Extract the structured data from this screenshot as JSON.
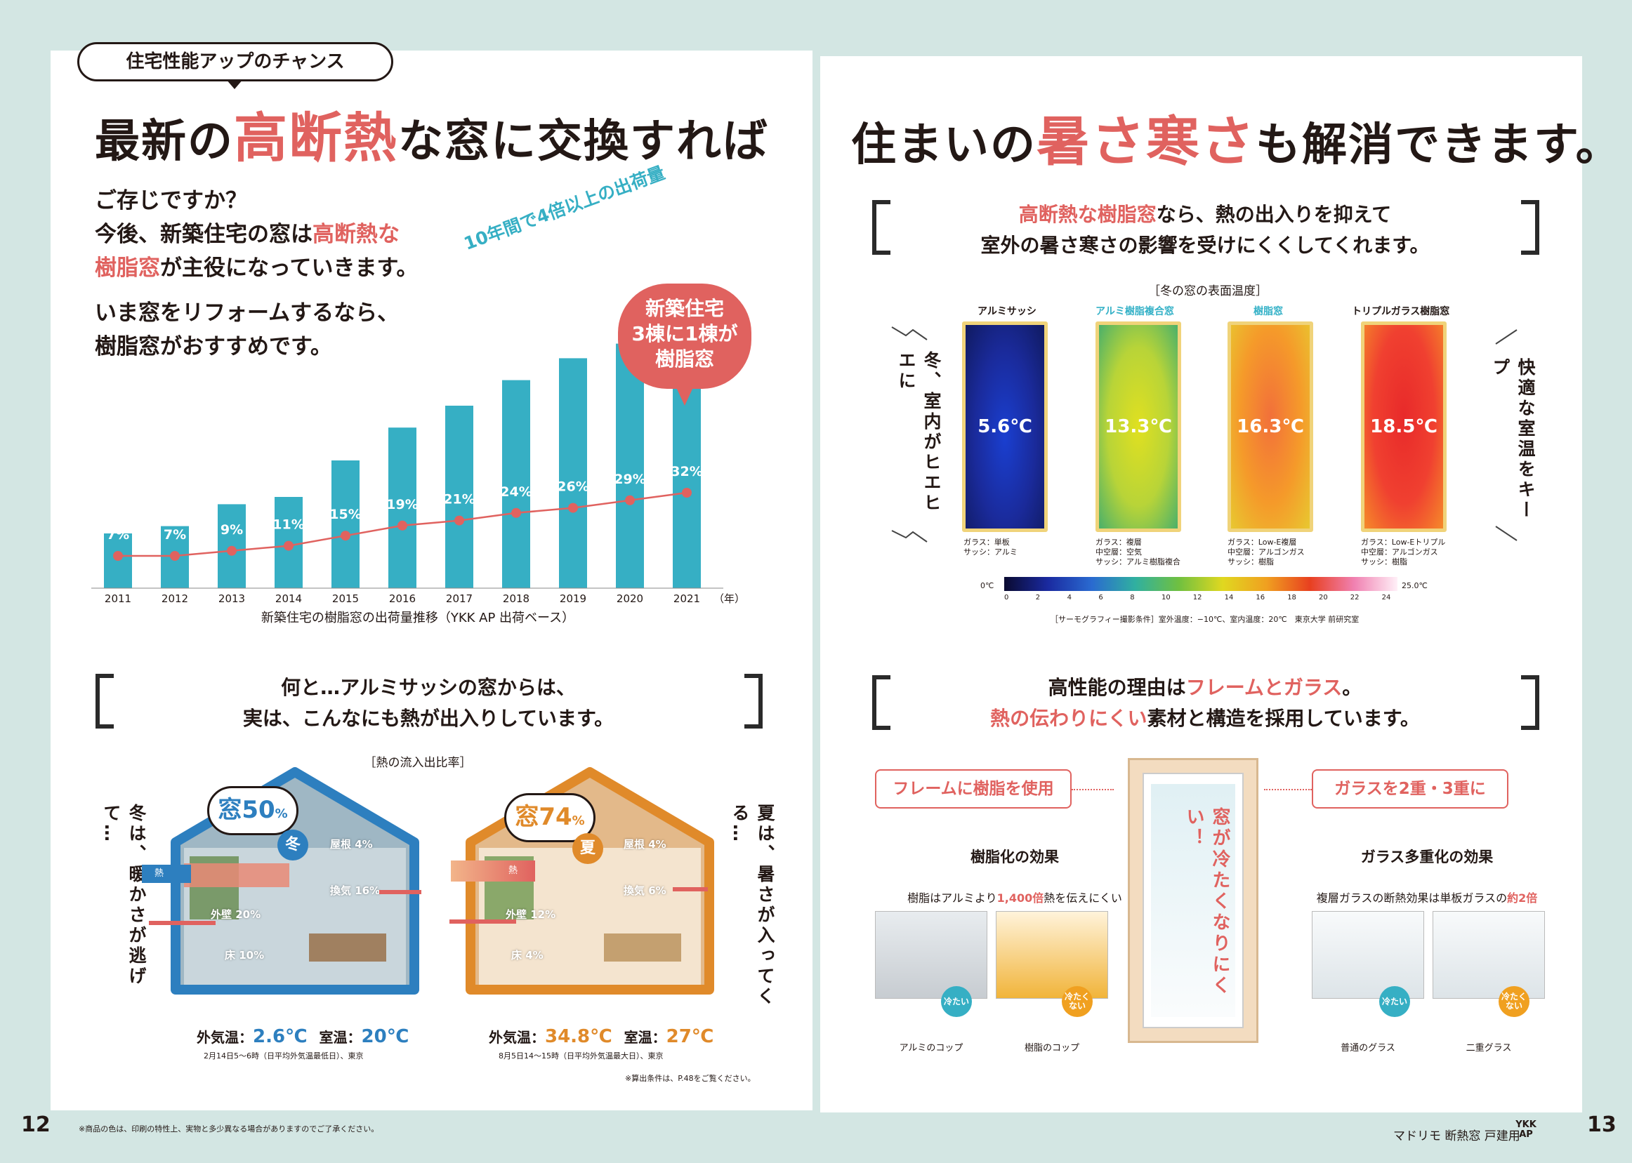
{
  "left": {
    "badge": "住宅性能アップのチャンス",
    "title": {
      "p1": "最新の",
      "p2": "高断熱",
      "p3": "な窓に交換すれば"
    },
    "intro": {
      "l1": "ご存じですか？",
      "l2a": "今後、新築住宅の窓は",
      "l2b": "高断熱な",
      "l3a": "樹脂窓",
      "l3b": "が主役になっていきます。",
      "l4": "いま窓をリフォームするなら、",
      "l5": "樹脂窓がおすすめです。"
    },
    "growth_note": "10年間で4倍以上の出荷量",
    "bubble": {
      "l1": "新築住宅",
      "l2": "3棟に1棟が",
      "l3": "樹脂窓"
    },
    "year_unit": "（年）",
    "chart_caption": "新築住宅の樹脂窓の出荷量推移（YKK AP 出荷ベース）",
    "flow_heading": {
      "l1": "何と…アルミサッシの窓からは、",
      "l2": "実は、こんなにも熱が出入りしています。"
    },
    "flow_sub": "［熱の流入出比率］",
    "winter": {
      "side": "冬は、暖かさが逃げて…",
      "window_label": "窓",
      "window_value": "50",
      "unit": "%",
      "season": "冬",
      "roof": "屋根 4%",
      "vent": "換気 16%",
      "wall": "外壁 20%",
      "floor": "床 10%",
      "heat": "熱",
      "temp_label_out": "外気温：",
      "temp_out": "2.6℃",
      "temp_label_in": "室温：",
      "temp_in": "20℃",
      "note": "2月14日5～6時（日平均外気温最低日）、東京"
    },
    "summer": {
      "side": "夏は、暑さが入ってくる…",
      "window_label": "窓",
      "window_value": "74",
      "unit": "%",
      "season": "夏",
      "roof": "屋根 4%",
      "vent": "換気 6%",
      "wall": "外壁 12%",
      "floor": "床 4%",
      "heat": "熱",
      "temp_label_out": "外気温：",
      "temp_out": "34.8℃",
      "temp_label_in": "室温：",
      "temp_in": "27℃",
      "note": "8月5日14～15時（日平均外気温最大日）、東京"
    },
    "calc_note": "※算出条件は、P.48をご覧ください。",
    "page_number": "12",
    "footer_note": "※商品の色は、印刷の特性上、実物と多少異なる場合がありますのでご了承ください。"
  },
  "right": {
    "title": {
      "p1": "住まいの",
      "p2": "暑さ寒さ",
      "p3": "も解消できます。"
    },
    "thermo_heading": {
      "l1a": "高断熱な樹脂窓",
      "l1b": "なら、熱の出入りを抑えて",
      "l2": "室外の暑さ寒さの影響を受けにくくしてくれます。"
    },
    "thermo_sub": "［冬の窓の表面温度］",
    "left_side": "冬、室内がヒエヒエに",
    "right_side": "快適な室温をキープ",
    "windows": [
      {
        "name": "アルミサッシ",
        "temp": "5.6℃",
        "spec": "ガラス：単板\nサッシ：アルミ"
      },
      {
        "name": "アルミ樹脂複合窓",
        "temp": "13.3℃",
        "spec": "ガラス：複層\n中空層：空気\nサッシ：アルミ樹脂複合"
      },
      {
        "name": "樹脂窓",
        "temp": "16.3℃",
        "spec": "ガラス：Low-E複層\n中空層：アルゴンガス\nサッシ：樹脂"
      },
      {
        "name": "トリプルガラス樹脂窓",
        "temp": "18.5℃",
        "spec": "ガラス：Low-Eトリプル\n中空層：アルゴンガス\nサッシ：樹脂"
      }
    ],
    "scale_min": "0℃",
    "scale_max": "25.0℃",
    "scale_ticks": [
      "0",
      "2",
      "4",
      "6",
      "8",
      "10",
      "12",
      "14",
      "16",
      "18",
      "20",
      "22",
      "24"
    ],
    "thermo_cond": "［サーモグラフィー撮影条件］室外温度：−10℃、室内温度：20℃　東京大学 前研究室",
    "perf_heading": {
      "l1a": "高性能の理由は",
      "l1b": "フレームとガラス",
      "l1c": "。",
      "l2a": "熱の伝わりにくい",
      "l2b": "素材と構造を採用しています。"
    },
    "frame_pill": "フレームに樹脂を使用",
    "glass_pill": "ガラスを2重・3重に",
    "window_vertical": "窓が冷たくなりにくい！",
    "resin_effect": "樹脂化の効果",
    "resin_desc": {
      "a": "樹脂はアルミより",
      "b": "1,400倍",
      "c": "熱を伝えにくい"
    },
    "glass_effect": "ガラス多重化の効果",
    "glass_desc": {
      "a": "複層ガラスの断熱効果は単板ガラスの",
      "b": "約2倍"
    },
    "cups": [
      {
        "label": "アルミのコップ",
        "badge": "冷たい"
      },
      {
        "label": "樹脂のコップ",
        "badge": "冷たくない"
      },
      {
        "label": "普通のグラス",
        "badge": "冷たい"
      },
      {
        "label": "二重グラス",
        "badge": "冷たくない"
      }
    ],
    "brand": "マドリモ 断熱窓 戸建用",
    "logo": "YKK AP",
    "page_number": "13"
  },
  "chart_data": {
    "type": "bar",
    "categories": [
      "2011",
      "2012",
      "2013",
      "2014",
      "2015",
      "2016",
      "2017",
      "2018",
      "2019",
      "2020",
      "2021"
    ],
    "share_labels": [
      "7%",
      "7%",
      "9%",
      "11%",
      "15%",
      "19%",
      "21%",
      "24%",
      "26%",
      "29%",
      "32%"
    ],
    "series": [
      {
        "type": "bar",
        "values": [
          7.5,
          8.5,
          11.5,
          12.5,
          17.5,
          22,
          25,
          28.5,
          31.5,
          33.5,
          39.5
        ]
      },
      {
        "type": "line",
        "values": [
          7,
          7,
          9,
          11,
          15,
          19,
          21,
          24,
          26,
          29,
          32
        ]
      }
    ],
    "xlabel": "（年）",
    "caption": "新築住宅の樹脂窓の出荷量推移（YKK AP 出荷ベース）",
    "colors": {
      "bar": "#36afc4",
      "line": "#e0625f"
    }
  },
  "colors": {
    "accent": "#e0625f",
    "teal": "#36afc4",
    "background": "#d3e6e3",
    "winter": "#2d7fbf",
    "summer": "#e08a2a"
  }
}
